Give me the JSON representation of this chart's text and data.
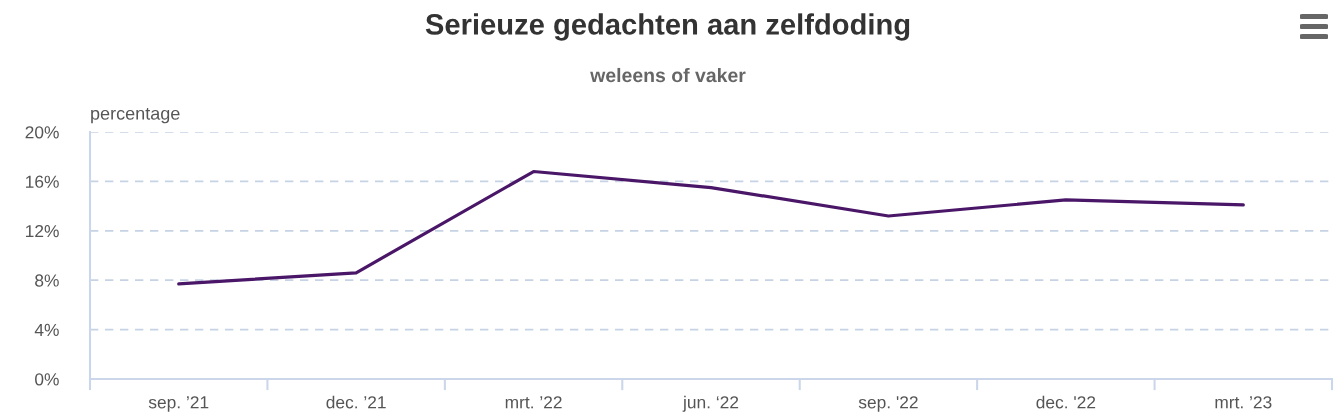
{
  "chart_data": {
    "type": "line",
    "title": "Serieuze gedachten aan zelfdoding",
    "subtitle": "weleens of vaker",
    "ylabel": "percentage",
    "categories": [
      "sep. ’21",
      "dec. ’21",
      "mrt. ’22",
      "jun. ‘22",
      "sep. '22",
      "dec. '22",
      "mrt. ’23"
    ],
    "series": [
      {
        "color": "#4a1668",
        "values": [
          7.7,
          8.6,
          16.8,
          15.5,
          13.2,
          14.5,
          14.1
        ]
      }
    ],
    "ylim": [
      0,
      20
    ],
    "yticks": [
      {
        "value": 0,
        "label": "0%"
      },
      {
        "value": 4,
        "label": "4%"
      },
      {
        "value": 8,
        "label": "8%"
      },
      {
        "value": 12,
        "label": "12%"
      },
      {
        "value": 16,
        "label": "16%"
      },
      {
        "value": 20,
        "label": "20%"
      }
    ],
    "grid": "y",
    "marker": "none",
    "line_style": "solid"
  }
}
